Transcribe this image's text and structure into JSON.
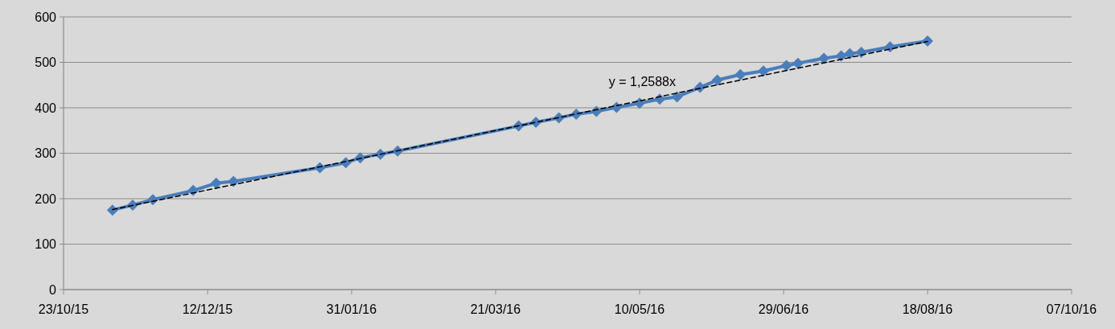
{
  "chart_data": {
    "type": "line",
    "xlim": [
      "2015-10-23",
      "2016-10-07"
    ],
    "xticks": [
      {
        "value": "2015-10-23",
        "label": "23/10/15"
      },
      {
        "value": "2015-12-12",
        "label": "12/12/15"
      },
      {
        "value": "2016-01-31",
        "label": "31/01/16"
      },
      {
        "value": "2016-03-21",
        "label": "21/03/16"
      },
      {
        "value": "2016-05-10",
        "label": "10/05/16"
      },
      {
        "value": "2016-06-29",
        "label": "29/06/16"
      },
      {
        "value": "2016-08-18",
        "label": "18/08/16"
      },
      {
        "value": "2016-10-07",
        "label": "07/10/16"
      }
    ],
    "ylim": [
      0,
      600
    ],
    "yticks": [
      0,
      100,
      200,
      300,
      400,
      500,
      600
    ],
    "grid": "y",
    "marker": "diamond",
    "annotations": [
      "y = 1,2588x"
    ],
    "series": [
      {
        "color": "#4a7ebb",
        "line_style": "solid",
        "x": [
          "2015-11-09",
          "2015-11-16",
          "2015-11-23",
          "2015-12-07",
          "2015-12-15",
          "2015-12-21",
          "2016-01-20",
          "2016-01-29",
          "2016-02-03",
          "2016-02-10",
          "2016-02-16",
          "2016-03-29",
          "2016-04-04",
          "2016-04-12",
          "2016-04-18",
          "2016-04-25",
          "2016-05-02",
          "2016-05-10",
          "2016-05-17",
          "2016-05-23",
          "2016-05-31",
          "2016-06-06",
          "2016-06-14",
          "2016-06-22",
          "2016-06-30",
          "2016-07-04",
          "2016-07-13",
          "2016-07-19",
          "2016-07-22",
          "2016-07-26",
          "2016-08-05",
          "2016-08-18"
        ],
        "values": [
          175,
          186,
          198,
          218,
          234,
          238,
          268,
          279,
          290,
          298,
          305,
          360,
          368,
          378,
          386,
          392,
          401,
          410,
          419,
          424,
          445,
          461,
          473,
          481,
          493,
          498,
          509,
          514,
          519,
          522,
          534,
          547
        ]
      },
      {
        "color": "#000000",
        "marker": "none",
        "line_style": "dashed",
        "x": [
          "2015-11-09",
          "2016-08-18"
        ],
        "values": [
          176,
          546
        ]
      }
    ]
  }
}
